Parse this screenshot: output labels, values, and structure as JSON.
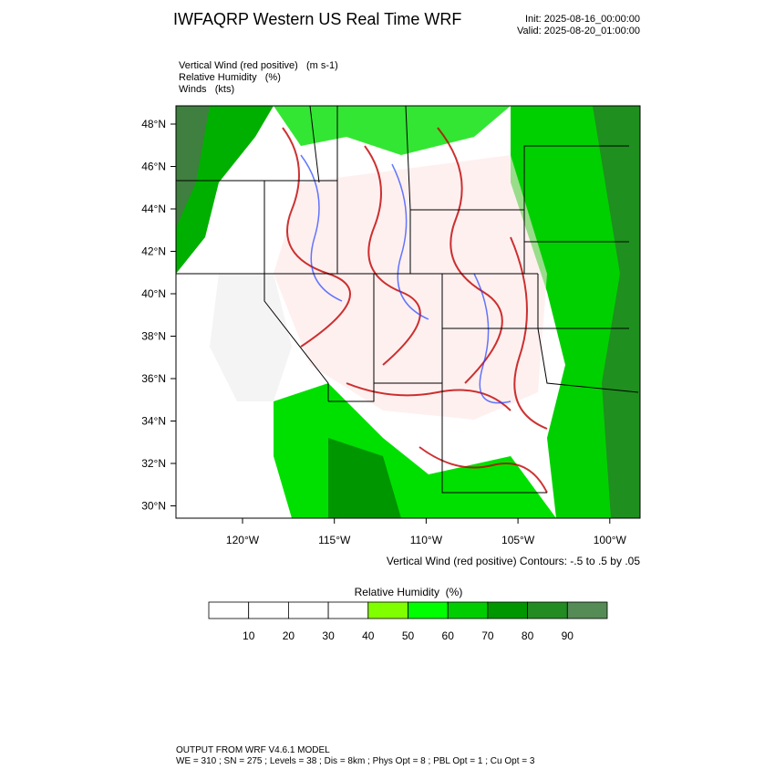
{
  "header": {
    "title": "IWFAQRP Western US Real Time WRF",
    "init": "Init: 2025-08-16_00:00:00",
    "valid": "Valid: 2025-08-20_01:00:00"
  },
  "field_labels": [
    "Vertical Wind (red positive)   (m s-1)",
    "Relative Humidity   (%)",
    "Winds   (kts)"
  ],
  "lat_labels": [
    "48°N",
    "46°N",
    "44°N",
    "42°N",
    "40°N",
    "38°N",
    "36°N",
    "34°N",
    "32°N",
    "30°N"
  ],
  "lon_labels": [
    "120°W",
    "115°W",
    "110°W",
    "105°W",
    "100°W"
  ],
  "contour_note": "Vertical Wind (red positive) Contours: -.5 to .5 by .05",
  "colorbar": {
    "title": "Relative Humidity  (%)",
    "ticks": [
      10,
      20,
      30,
      40,
      50,
      60,
      70,
      80,
      90
    ],
    "colors": [
      "#ffffff",
      "#ffffff",
      "#ffffff",
      "#ffffff",
      "#80ff00",
      "#00ff00",
      "#00cd00",
      "#009600",
      "#228b22",
      "#558b55"
    ]
  },
  "footer": [
    "OUTPUT FROM WRF V4.6.1 MODEL",
    "WE = 310 ; SN = 275 ; Levels = 38 ; Dis = 8km ; Phys Opt = 8 ; PBL Opt = 1 ; Cu Opt = 3"
  ]
}
